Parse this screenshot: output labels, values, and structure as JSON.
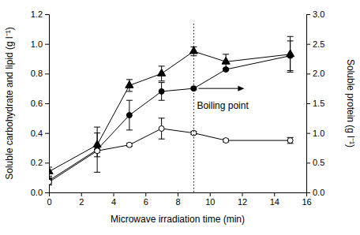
{
  "chart_data": {
    "type": "line",
    "x": [
      0,
      3,
      5,
      7,
      9,
      11,
      15
    ],
    "xlabel": "Microwave irradiation time (min)",
    "ylabel": "Soluble carbohydrate and lipid (g l⁻¹)",
    "y2label": "Soluble protein (g l⁻¹)",
    "xlim": [
      0,
      16
    ],
    "xticks": [
      0,
      2,
      4,
      6,
      8,
      10,
      12,
      14,
      16
    ],
    "ylim": [
      0,
      1.2
    ],
    "yticks": [
      {
        "value": 0,
        "label": "0.0"
      },
      {
        "value": 0.2,
        "label": "0.2"
      },
      {
        "value": 0.4,
        "label": "0.4"
      },
      {
        "value": 0.6,
        "label": "0.6"
      },
      {
        "value": 0.8,
        "label": "0.8"
      },
      {
        "value": 1.0,
        "label": "1.0"
      },
      {
        "value": 1.2,
        "label": "1.2"
      }
    ],
    "y2lim": [
      0,
      3
    ],
    "y2ticks": [
      {
        "value": 0,
        "label": "0.0"
      },
      {
        "value": 0.5,
        "label": "0.5"
      },
      {
        "value": 1.0,
        "label": "1.0"
      },
      {
        "value": 1.5,
        "label": "1.5"
      },
      {
        "value": 2.0,
        "label": "2.0"
      },
      {
        "value": 2.5,
        "label": "2.5"
      },
      {
        "value": 3.0,
        "label": "3.0"
      }
    ],
    "series": [
      {
        "color": "#000000",
        "marker": "triangle",
        "line_style": "solid",
        "values": [
          0.14,
          0.32,
          0.72,
          0.8,
          0.95,
          0.88,
          0.93
        ],
        "errors": [
          0.03,
          0.08,
          0.04,
          0.05,
          0.03,
          0.05,
          0.12
        ]
      },
      {
        "color": "#000000",
        "marker": "circle",
        "line_style": "solid",
        "axis": "y2",
        "values": [
          0.2,
          0.72,
          1.3,
          1.7,
          1.75,
          2.07,
          2.3
        ],
        "errors": [
          0.05,
          0.38,
          0.25,
          0.15,
          0.02,
          0.02,
          0.25
        ]
      },
      {
        "color": "#000000",
        "marker": "open-circle",
        "line_style": "solid",
        "values": [
          0.07,
          0.28,
          0.32,
          0.43,
          0.4,
          0.35,
          0.35
        ],
        "errors": [
          0.02,
          0.01,
          0.01,
          0.07,
          0.01,
          0.01,
          0.02
        ]
      }
    ],
    "reference_line": {
      "x": 9
    },
    "annotations": [
      {
        "text": "Boiling point"
      }
    ]
  }
}
